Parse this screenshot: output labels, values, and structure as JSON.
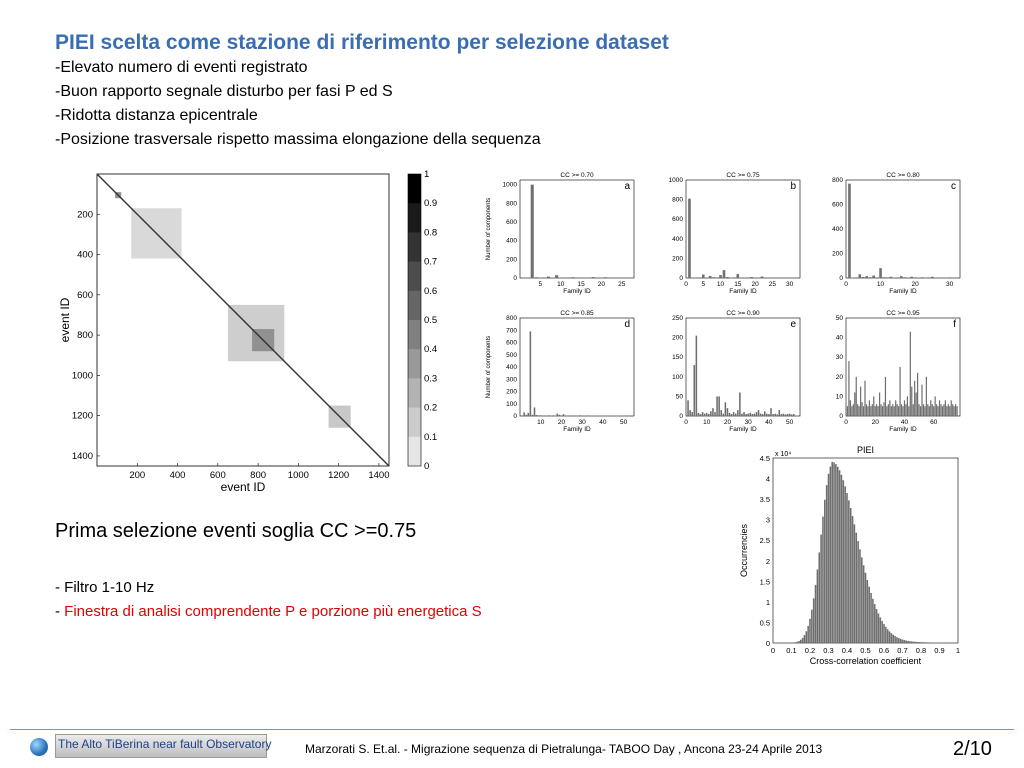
{
  "slide": {
    "title": "PIEI scelta come stazione di riferimento per selezione dataset",
    "bullets": [
      "-Elevato numero di eventi registrato",
      "-Buon rapporto segnale disturbo per fasi P ed S",
      "-Ridotta distanza epicentrale",
      "-Posizione trasversale rispetto massima elongazione della sequenza"
    ],
    "subheading": "Prima selezione eventi soglia CC >=0.75",
    "notes": [
      {
        "prefix": "- ",
        "text": "Filtro 1-10 Hz",
        "color": "#000000"
      },
      {
        "prefix": "- ",
        "text": "Finestra di analisi comprendente P e porzione più energetica S",
        "color": "#e00000"
      }
    ]
  },
  "footer": {
    "logo_text": "The Alto TiBerina near fault Observatory",
    "citation": "Marzorati S.  Et.al. - Migrazione sequenza di Pietralunga- TABOO Day , Ancona 23-24 Aprile 2013",
    "page": "2/10"
  },
  "colors": {
    "title": "#3a6eb4",
    "highlight": "#e00000",
    "bars": "#6e6e6e",
    "footer_line": "#e07070"
  },
  "chart_data": [
    {
      "id": "matrix",
      "type": "heatmap",
      "xlabel": "event ID",
      "ylabel": "event ID",
      "xticks": [
        200,
        400,
        600,
        800,
        1000,
        1200,
        1400
      ],
      "yticks": [
        200,
        400,
        600,
        800,
        1000,
        1200,
        1400
      ],
      "xlim": [
        0,
        1450
      ],
      "ylim": [
        0,
        1450
      ],
      "colorbar_ticks": [
        "0",
        "0.1",
        "0.2",
        "0.3",
        "0.4",
        "0.5",
        "0.6",
        "0.7",
        "0.8",
        "0.9",
        "1"
      ],
      "blocks": [
        {
          "from": 170,
          "to": 420,
          "level": 0.35
        },
        {
          "from": 650,
          "to": 930,
          "level": 0.45
        },
        {
          "from": 770,
          "to": 880,
          "level": 0.8
        },
        {
          "from": 1150,
          "to": 1260,
          "level": 0.5
        },
        {
          "from": 90,
          "to": 120,
          "level": 1.0
        }
      ]
    },
    {
      "id": "a",
      "type": "bar",
      "title": "CC >= 0.70",
      "panel_label": "a",
      "xlabel": "Family ID",
      "ylabel": "Number of components",
      "xlim": [
        0,
        28
      ],
      "ylim": [
        0,
        1050
      ],
      "xticks": [
        5,
        10,
        15,
        20,
        25
      ],
      "yticks": [
        0,
        200,
        400,
        600,
        800,
        1000
      ],
      "x": [
        1,
        2,
        3,
        4,
        5,
        6,
        7,
        8,
        9,
        10,
        11,
        12,
        13,
        14,
        15,
        16,
        17,
        18,
        19,
        20,
        21,
        22,
        23,
        24,
        25,
        26,
        27
      ],
      "values": [
        5,
        4,
        1000,
        8,
        5,
        6,
        15,
        4,
        30,
        5,
        4,
        6,
        8,
        4,
        5,
        5,
        4,
        10,
        5,
        4,
        8,
        4,
        5,
        4,
        3,
        3,
        3
      ]
    },
    {
      "id": "b",
      "type": "bar",
      "title": "CC >= 0.75",
      "panel_label": "b",
      "xlabel": "Family ID",
      "ylabel": "",
      "xlim": [
        0,
        33
      ],
      "ylim": [
        0,
        1000
      ],
      "xticks": [
        0,
        5,
        10,
        15,
        20,
        25,
        30
      ],
      "yticks": [
        0,
        200,
        400,
        600,
        800,
        1000
      ],
      "x": [
        1,
        2,
        3,
        4,
        5,
        6,
        7,
        8,
        9,
        10,
        11,
        12,
        13,
        14,
        15,
        16,
        17,
        18,
        19,
        20,
        21,
        22,
        23,
        24,
        25,
        26,
        27,
        28,
        29,
        30,
        31
      ],
      "values": [
        810,
        5,
        4,
        6,
        35,
        5,
        20,
        8,
        6,
        30,
        80,
        10,
        5,
        6,
        40,
        5,
        4,
        6,
        10,
        5,
        4,
        15,
        5,
        4,
        3,
        4,
        3,
        5,
        3,
        4,
        3
      ]
    },
    {
      "id": "c",
      "type": "bar",
      "title": "CC >= 0.80",
      "panel_label": "c",
      "xlabel": "Family ID",
      "ylabel": "",
      "xlim": [
        0,
        33
      ],
      "ylim": [
        0,
        800
      ],
      "xticks": [
        0,
        10,
        20,
        30
      ],
      "yticks": [
        0,
        200,
        400,
        600,
        800
      ],
      "x": [
        1,
        2,
        3,
        4,
        5,
        6,
        7,
        8,
        9,
        10,
        11,
        12,
        13,
        14,
        15,
        16,
        17,
        18,
        19,
        20,
        21,
        22,
        23,
        24,
        25,
        26,
        27,
        28,
        29,
        30,
        31
      ],
      "values": [
        770,
        4,
        5,
        30,
        8,
        15,
        6,
        20,
        5,
        80,
        6,
        5,
        10,
        4,
        5,
        15,
        6,
        4,
        10,
        5,
        4,
        6,
        4,
        5,
        10,
        4,
        3,
        4,
        3,
        5,
        3
      ]
    },
    {
      "id": "d",
      "type": "bar",
      "title": "CC >= 0.85",
      "panel_label": "d",
      "xlabel": "Family ID",
      "ylabel": "Number of components",
      "xlim": [
        0,
        55
      ],
      "ylim": [
        0,
        800
      ],
      "xticks": [
        10,
        20,
        30,
        40,
        50
      ],
      "yticks": [
        0,
        100,
        200,
        300,
        400,
        500,
        600,
        700,
        800
      ],
      "x": [
        1,
        2,
        3,
        4,
        5,
        6,
        7,
        8,
        9,
        10,
        11,
        12,
        13,
        14,
        15,
        16,
        17,
        18,
        19,
        20,
        21,
        22,
        23,
        24,
        25,
        26,
        27,
        28,
        29,
        30,
        31,
        32,
        33,
        34,
        35,
        36,
        37,
        38,
        39,
        40,
        41,
        42,
        43,
        44,
        45,
        46,
        47,
        48,
        49,
        50
      ],
      "values": [
        5,
        30,
        10,
        25,
        690,
        10,
        70,
        8,
        5,
        6,
        4,
        5,
        4,
        6,
        4,
        5,
        4,
        20,
        10,
        6,
        15,
        5,
        4,
        5,
        3,
        5,
        4,
        3,
        6,
        3,
        4,
        3,
        5,
        3,
        4,
        3,
        3,
        4,
        3,
        3,
        4,
        3,
        3,
        4,
        3,
        3,
        3,
        4,
        3,
        3
      ]
    },
    {
      "id": "e",
      "type": "bar",
      "title": "CC >= 0.90",
      "panel_label": "e",
      "xlabel": "Family ID",
      "ylabel": "",
      "xlim": [
        0,
        55
      ],
      "ylim": [
        0,
        250
      ],
      "xticks": [
        0,
        10,
        20,
        30,
        40,
        50
      ],
      "yticks": [
        0,
        50,
        100,
        150,
        200,
        250
      ],
      "x": [
        1,
        2,
        3,
        4,
        5,
        6,
        7,
        8,
        9,
        10,
        11,
        12,
        13,
        14,
        15,
        16,
        17,
        18,
        19,
        20,
        21,
        22,
        23,
        24,
        25,
        26,
        27,
        28,
        29,
        30,
        31,
        32,
        33,
        34,
        35,
        36,
        37,
        38,
        39,
        40,
        41,
        42,
        43,
        44,
        45,
        46,
        47,
        48,
        49,
        50,
        51,
        52
      ],
      "values": [
        40,
        15,
        10,
        130,
        205,
        8,
        5,
        10,
        6,
        8,
        5,
        12,
        20,
        10,
        50,
        50,
        15,
        6,
        35,
        20,
        8,
        5,
        10,
        6,
        15,
        60,
        6,
        10,
        5,
        6,
        8,
        5,
        6,
        10,
        15,
        6,
        5,
        12,
        6,
        5,
        20,
        5,
        6,
        4,
        15,
        5,
        6,
        4,
        5,
        6,
        4,
        5
      ]
    },
    {
      "id": "f",
      "type": "bar",
      "title": "CC >= 0.95",
      "panel_label": "f",
      "xlabel": "Family ID",
      "ylabel": "",
      "xlim": [
        0,
        78
      ],
      "ylim": [
        0,
        50
      ],
      "xticks": [
        0,
        20,
        40,
        60
      ],
      "yticks": [
        0,
        10,
        20,
        30,
        40,
        50
      ],
      "x": [
        1,
        2,
        3,
        4,
        5,
        6,
        7,
        8,
        9,
        10,
        11,
        12,
        13,
        14,
        15,
        16,
        17,
        18,
        19,
        20,
        21,
        22,
        23,
        24,
        25,
        26,
        27,
        28,
        29,
        30,
        31,
        32,
        33,
        34,
        35,
        36,
        37,
        38,
        39,
        40,
        41,
        42,
        43,
        44,
        45,
        46,
        47,
        48,
        49,
        50,
        51,
        52,
        53,
        54,
        55,
        56,
        57,
        58,
        59,
        60,
        61,
        62,
        63,
        64,
        65,
        66,
        67,
        68,
        69,
        70,
        71,
        72,
        73,
        74,
        75,
        76
      ],
      "values": [
        5,
        28,
        8,
        5,
        6,
        12,
        20,
        6,
        5,
        15,
        7,
        5,
        18,
        6,
        5,
        8,
        5,
        6,
        10,
        5,
        6,
        5,
        12,
        6,
        5,
        7,
        20,
        5,
        6,
        8,
        5,
        6,
        5,
        8,
        6,
        5,
        25,
        6,
        5,
        8,
        6,
        10,
        5,
        43,
        15,
        6,
        18,
        12,
        22,
        6,
        5,
        16,
        6,
        5,
        20,
        6,
        5,
        8,
        6,
        5,
        10,
        6,
        5,
        8,
        6,
        5,
        6,
        8,
        5,
        6,
        5,
        8,
        6,
        5,
        6,
        5
      ]
    },
    {
      "id": "piei",
      "type": "bar",
      "title": "PIEI",
      "xlabel": "Cross-correlation coefficient",
      "ylabel": "Occurrencies",
      "y_multiplier": "x 10⁴",
      "xlim": [
        0,
        1
      ],
      "ylim": [
        0,
        4.5
      ],
      "xticks": [
        "0",
        "0.1",
        "0.2",
        "0.3",
        "0.4",
        "0.5",
        "0.6",
        "0.7",
        "0.8",
        "0.9",
        "1"
      ],
      "yticks": [
        "0",
        "0.5",
        "1",
        "1.5",
        "2",
        "2.5",
        "3",
        "3.5",
        "4",
        "4.5"
      ],
      "bin_width": 0.01,
      "peak": 0.32,
      "peak_value": 4.35
    }
  ]
}
